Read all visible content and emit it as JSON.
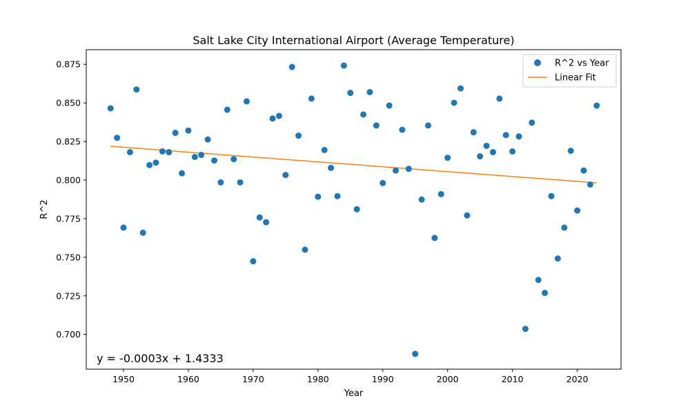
{
  "chart_data": {
    "type": "scatter",
    "title": "Salt Lake City International Airport (Average Temperature)",
    "xlabel": "Year",
    "ylabel": "R^2",
    "xlim": [
      1944.25,
      2026.75
    ],
    "ylim": [
      0.6775,
      0.8845
    ],
    "xticks": [
      1950,
      1960,
      1970,
      1980,
      1990,
      2000,
      2010,
      2020
    ],
    "yticks": [
      0.7,
      0.725,
      0.75,
      0.775,
      0.8,
      0.825,
      0.85,
      0.875
    ],
    "grid": false,
    "legend_position": "top-right",
    "equation_text": "y = -0.0003x + 1.4333",
    "series": [
      {
        "name": "R^2 vs Year",
        "kind": "scatter",
        "color": "#1f77b4",
        "x": [
          1948,
          1949,
          1950,
          1951,
          1952,
          1953,
          1954,
          1955,
          1956,
          1957,
          1958,
          1959,
          1960,
          1961,
          1962,
          1963,
          1964,
          1965,
          1966,
          1967,
          1968,
          1969,
          1970,
          1971,
          1972,
          1973,
          1974,
          1975,
          1976,
          1977,
          1978,
          1979,
          1980,
          1981,
          1982,
          1983,
          1984,
          1985,
          1986,
          1987,
          1988,
          1989,
          1990,
          1991,
          1992,
          1993,
          1994,
          1995,
          1996,
          1997,
          1998,
          1999,
          2000,
          2001,
          2002,
          2003,
          2004,
          2005,
          2006,
          2007,
          2008,
          2009,
          2010,
          2011,
          2012,
          2013,
          2014,
          2015,
          2016,
          2017,
          2018,
          2019,
          2020,
          2021,
          2022,
          2023
        ],
        "y": [
          0.8465,
          0.8274,
          0.7692,
          0.8181,
          0.8587,
          0.7659,
          0.8097,
          0.8113,
          0.8186,
          0.8181,
          0.8306,
          0.8044,
          0.8321,
          0.815,
          0.8163,
          0.8263,
          0.8127,
          0.7985,
          0.8456,
          0.8136,
          0.7985,
          0.851,
          0.7474,
          0.7758,
          0.7727,
          0.8399,
          0.8416,
          0.8033,
          0.8733,
          0.8288,
          0.7549,
          0.8528,
          0.7892,
          0.8195,
          0.8079,
          0.7896,
          0.8742,
          0.8565,
          0.7811,
          0.8425,
          0.857,
          0.8354,
          0.7981,
          0.8483,
          0.8062,
          0.8326,
          0.8073,
          0.6874,
          0.7874,
          0.8354,
          0.7625,
          0.7909,
          0.8145,
          0.8501,
          0.8594,
          0.7771,
          0.831,
          0.8154,
          0.8222,
          0.8181,
          0.8528,
          0.8292,
          0.8186,
          0.8283,
          0.7036,
          0.8372,
          0.7353,
          0.7269,
          0.7896,
          0.7492,
          0.7692,
          0.819,
          0.7803,
          0.8062,
          0.7971,
          0.8483
        ]
      },
      {
        "name": "Linear Fit",
        "kind": "line",
        "color": "#ff7f0e",
        "x": [
          1948,
          2023
        ],
        "y": [
          0.8219,
          0.7982
        ]
      }
    ]
  }
}
